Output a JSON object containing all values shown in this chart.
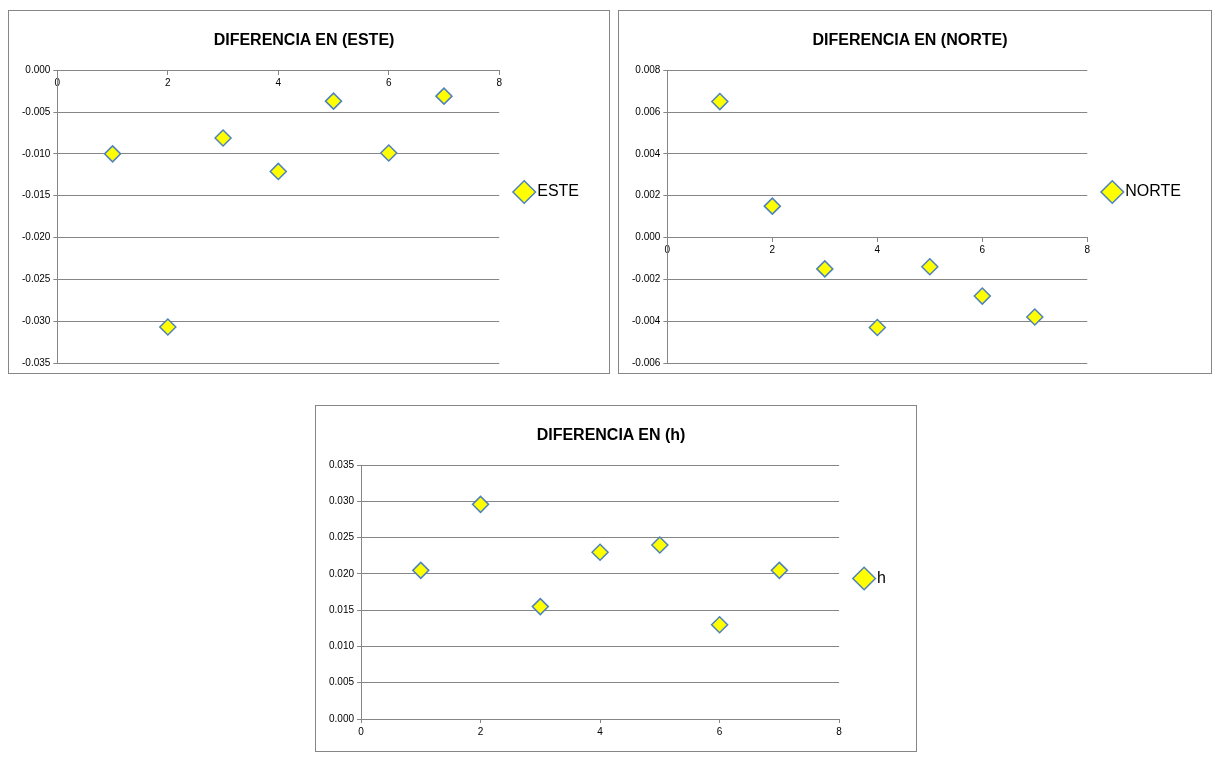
{
  "chart_data": [
    {
      "type": "scatter",
      "title": "DIFERENCIA EN (ESTE)",
      "x": [
        1,
        2,
        3,
        4,
        5,
        6,
        7
      ],
      "xlim": [
        0,
        8
      ],
      "xticks": [
        0,
        2,
        4,
        6,
        8
      ],
      "ylim": [
        -0.035,
        0
      ],
      "yticks": [
        {
          "value": 0,
          "label": "0.000"
        },
        {
          "value": -0.005,
          "label": "-0.005"
        },
        {
          "value": -0.01,
          "label": "-0.010"
        },
        {
          "value": -0.015,
          "label": "-0.015"
        },
        {
          "value": -0.02,
          "label": "-0.020"
        },
        {
          "value": -0.025,
          "label": "-0.025"
        },
        {
          "value": -0.03,
          "label": "-0.030"
        },
        {
          "value": -0.035,
          "label": "-0.035"
        }
      ],
      "grid": "y",
      "legend": "right",
      "marker": "diamond",
      "series": [
        {
          "name": "ESTE",
          "color": "#ffff00",
          "values": [
            -0.01,
            -0.0307,
            -0.0081,
            -0.0121,
            -0.0037,
            -0.0099,
            -0.0031
          ]
        }
      ]
    },
    {
      "type": "scatter",
      "title": "DIFERENCIA EN (NORTE)",
      "x": [
        1,
        2,
        3,
        4,
        5,
        6,
        7
      ],
      "xlim": [
        0,
        8
      ],
      "xticks": [
        0,
        2,
        4,
        6,
        8
      ],
      "ylim": [
        -0.006,
        0.008
      ],
      "yticks": [
        {
          "value": 0.008,
          "label": "0.008"
        },
        {
          "value": 0.006,
          "label": "0.006"
        },
        {
          "value": 0.004,
          "label": "0.004"
        },
        {
          "value": 0.002,
          "label": "0.002"
        },
        {
          "value": 0,
          "label": "0.000"
        },
        {
          "value": -0.002,
          "label": "-0.002"
        },
        {
          "value": -0.004,
          "label": "-0.004"
        },
        {
          "value": -0.006,
          "label": "-0.006"
        }
      ],
      "grid": "y",
      "legend": "right",
      "marker": "diamond",
      "series": [
        {
          "name": "NORTE",
          "color": "#ffff00",
          "values": [
            0.0065,
            0.0015,
            -0.0015,
            -0.0043,
            -0.0014,
            -0.0028,
            -0.0038
          ]
        }
      ]
    },
    {
      "type": "scatter",
      "title": "DIFERENCIA EN (h)",
      "x": [
        1,
        2,
        3,
        4,
        5,
        6,
        7
      ],
      "xlim": [
        0,
        8
      ],
      "xticks": [
        0,
        2,
        4,
        6,
        8
      ],
      "ylim": [
        0,
        0.035
      ],
      "yticks": [
        {
          "value": 0,
          "label": "0.000"
        },
        {
          "value": 0.005,
          "label": "0.005"
        },
        {
          "value": 0.01,
          "label": "0.010"
        },
        {
          "value": 0.015,
          "label": "0.015"
        },
        {
          "value": 0.02,
          "label": "0.020"
        },
        {
          "value": 0.025,
          "label": "0.025"
        },
        {
          "value": 0.03,
          "label": "0.030"
        },
        {
          "value": 0.035,
          "label": "0.035"
        }
      ],
      "grid": "y",
      "legend": "right",
      "marker": "diamond",
      "series": [
        {
          "name": "h",
          "color": "#ffff00",
          "values": [
            0.0205,
            0.0296,
            0.0155,
            0.023,
            0.024,
            0.013,
            0.0205
          ]
        }
      ]
    }
  ]
}
